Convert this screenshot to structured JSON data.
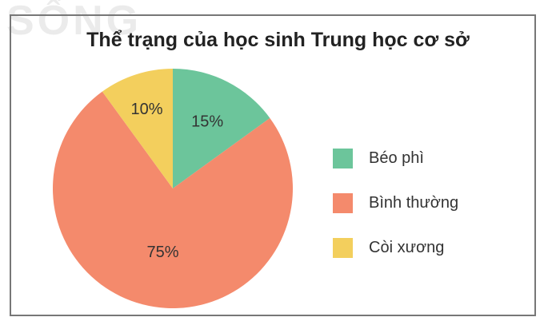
{
  "watermark": "SỐNG",
  "chart_data": {
    "type": "pie",
    "title": "Thể trạng của học sinh Trung học cơ sở",
    "categories": [
      "Béo phì",
      "Bình thường",
      "Còi xương"
    ],
    "values": [
      15,
      75,
      10
    ],
    "labels": [
      "15%",
      "75%",
      "10%"
    ],
    "colors": [
      "#6cc59b",
      "#f48a6c",
      "#f3cf5d"
    ],
    "start": "top",
    "direction": "clockwise",
    "legend": "right"
  }
}
